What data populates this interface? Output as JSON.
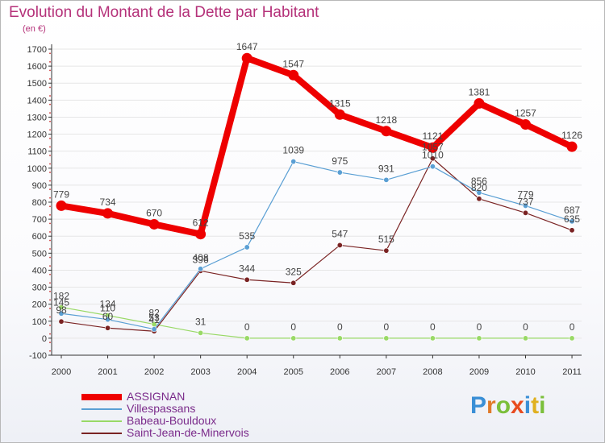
{
  "header": {
    "title": "Evolution du Montant de la Dette par Habitant",
    "subtitle": "(en €)"
  },
  "colors": {
    "title": "#b5327a",
    "axis": "#333333",
    "grid": "#e6e6e6"
  },
  "brand": {
    "letters": [
      "P",
      "r",
      "o",
      "x",
      "i",
      "t",
      "i"
    ],
    "colors": [
      "#3a8fd6",
      "#e07a2a",
      "#7bbf3a",
      "#e84b1f",
      "#3a8fd6",
      "#e0b020",
      "#7bbf3a"
    ]
  },
  "chart_data": {
    "type": "line",
    "title": "Evolution du Montant de la Dette par Habitant",
    "ylabel": "(en €)",
    "x": [
      "2000",
      "2001",
      "2002",
      "2003",
      "2004",
      "2005",
      "2006",
      "2007",
      "2008",
      "2009",
      "2010",
      "2011"
    ],
    "ylim": [
      -100,
      1700
    ],
    "yticks": [
      -100,
      0,
      100,
      200,
      300,
      400,
      500,
      600,
      700,
      800,
      900,
      1000,
      1100,
      1200,
      1300,
      1400,
      1500,
      1600,
      1700
    ],
    "grid": true,
    "legend": "bottom-left",
    "series": [
      {
        "name": "ASSIGNAN",
        "color": "#ee0000",
        "values": [
          779,
          734,
          670,
          612,
          1647,
          1547,
          1315,
          1218,
          1121,
          1381,
          1257,
          1126
        ],
        "labels": [
          "779",
          "734",
          "670",
          "612",
          "1647",
          "1547",
          "1315",
          "1218",
          "1121",
          "1381",
          "1257",
          "1126"
        ]
      },
      {
        "name": "Villespassans",
        "color": "#5a9fd4",
        "values": [
          145,
          110,
          53,
          408,
          535,
          1039,
          975,
          931,
          1010,
          856,
          779,
          687
        ],
        "labels": [
          "145",
          "110",
          "53",
          "408",
          "535",
          "1039",
          "975",
          "931",
          "1010",
          "856",
          "779",
          "687"
        ]
      },
      {
        "name": "Babeau-Bouldoux",
        "color": "#99d966",
        "values": [
          182,
          134,
          82,
          31,
          0,
          0,
          0,
          0,
          0,
          0,
          0,
          0
        ],
        "labels": [
          "182",
          "134",
          "82",
          "31",
          "0",
          "0",
          "0",
          "0",
          "0",
          "0",
          "0",
          "0"
        ]
      },
      {
        "name": "Saint-Jean-de-Minervois",
        "color": "#7a2323",
        "values": [
          98,
          60,
          41,
          396,
          344,
          325,
          547,
          515,
          1057,
          820,
          737,
          635
        ],
        "labels": [
          "98",
          "60",
          "41",
          "396",
          "344",
          "325",
          "547",
          "515",
          "1057",
          "820",
          "737",
          "635"
        ]
      }
    ]
  }
}
